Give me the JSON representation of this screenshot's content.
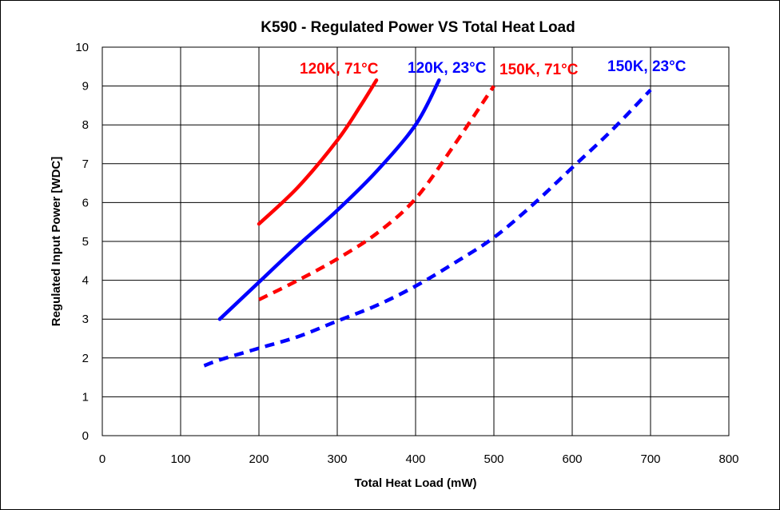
{
  "chart_data": {
    "type": "line",
    "title": "K590 - Regulated Power VS Total Heat Load",
    "xlabel": "Total Heat Load (mW)",
    "ylabel": "Regulated Input Power [WDC]",
    "xlim": [
      0,
      800
    ],
    "ylim": [
      0,
      10
    ],
    "x_ticks": [
      "0",
      "100",
      "200",
      "300",
      "400",
      "500",
      "600",
      "700",
      "800"
    ],
    "y_ticks": [
      "0",
      "1",
      "2",
      "3",
      "4",
      "5",
      "6",
      "7",
      "8",
      "9",
      "10"
    ],
    "grid": true,
    "series": [
      {
        "name": "120K, 71°C",
        "color": "#ff0000",
        "style": "solid",
        "points": [
          [
            200,
            5.45
          ],
          [
            250,
            6.4
          ],
          [
            300,
            7.6
          ],
          [
            330,
            8.5
          ],
          [
            350,
            9.15
          ]
        ]
      },
      {
        "name": "120K, 23°C",
        "color": "#0000ff",
        "style": "solid",
        "points": [
          [
            150,
            3.0
          ],
          [
            200,
            3.95
          ],
          [
            250,
            4.9
          ],
          [
            300,
            5.8
          ],
          [
            350,
            6.8
          ],
          [
            400,
            8.0
          ],
          [
            430,
            9.15
          ]
        ]
      },
      {
        "name": "150K, 71°C",
        "color": "#ff0000",
        "style": "dashed",
        "points": [
          [
            200,
            3.5
          ],
          [
            250,
            4.0
          ],
          [
            300,
            4.55
          ],
          [
            350,
            5.2
          ],
          [
            400,
            6.1
          ],
          [
            450,
            7.5
          ],
          [
            500,
            9.0
          ]
        ]
      },
      {
        "name": "150K, 23°C",
        "color": "#0000ff",
        "style": "dashed",
        "points": [
          [
            130,
            1.8
          ],
          [
            150,
            1.95
          ],
          [
            200,
            2.25
          ],
          [
            250,
            2.55
          ],
          [
            300,
            2.95
          ],
          [
            350,
            3.35
          ],
          [
            400,
            3.85
          ],
          [
            450,
            4.45
          ],
          [
            500,
            5.1
          ],
          [
            550,
            5.95
          ],
          [
            600,
            6.9
          ],
          [
            650,
            7.85
          ],
          [
            700,
            8.9
          ]
        ]
      }
    ]
  }
}
